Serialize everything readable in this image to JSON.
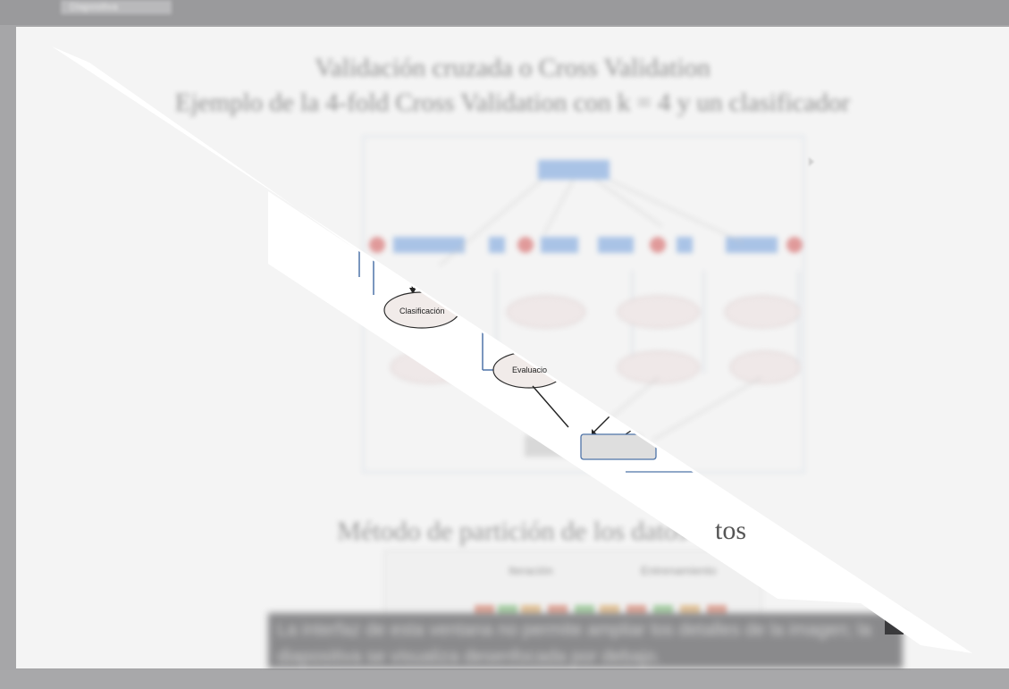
{
  "window": {
    "tab_label": "Diapositiva"
  },
  "slide": {
    "title_line1": "Validación cruzada o Cross Validation",
    "title_line2": "Ejemplo de la 4-fold Cross Validation con k = 4 y un clasificador",
    "subtitle": "Método de partición de los datos",
    "partial_subtitle": "tos",
    "diagram": {
      "node_clasificacion": "Clasificación",
      "node_evaluacion": "Evaluacio"
    },
    "partition": {
      "col_headers": [
        "Iteración",
        "Entrenamiento"
      ]
    }
  },
  "caption": {
    "text": "La interfaz de esta ventana no permite ampliar los detalles de la imagen; la diapositiva se visualiza desenfocada por debajo."
  },
  "colors": {
    "slide_bg": "#f4f4f4",
    "frame_gray": "#a6a6a8",
    "diagram_blue": "#a9c3e6",
    "diagram_red": "#e09a9a",
    "caption_bg": "#8a8a8c",
    "stripe": "#ffffff"
  },
  "icons": {
    "cursor": "arrow-pointer-icon"
  }
}
